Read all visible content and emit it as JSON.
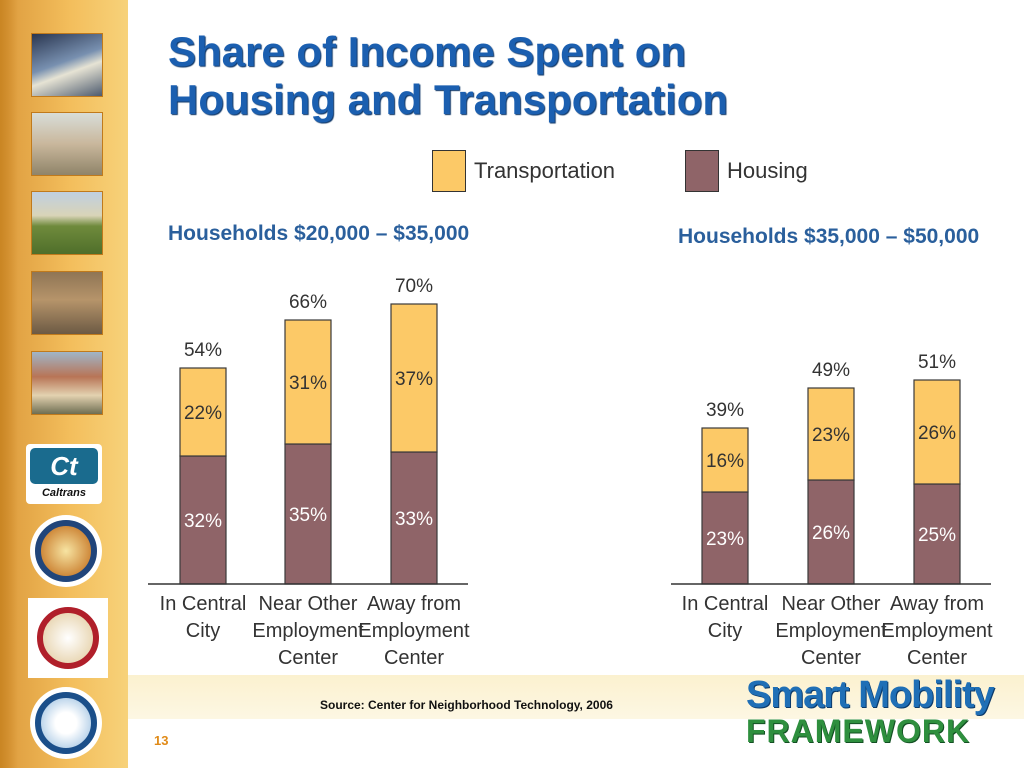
{
  "slide": {
    "title_line1": "Share of Income Spent on",
    "title_line2": "Housing and Transportation",
    "source": "Source: Center for Neighborhood Technology, 2006",
    "page_number": "13",
    "brand_line1": "Smart Mobility",
    "brand_line2": "FRAMEWORK",
    "logo_text": "Caltrans"
  },
  "colors": {
    "transportation": "#fcc967",
    "housing": "#8f6468",
    "title": "#1b5fb0",
    "heading": "#2a5f9c"
  },
  "legend": [
    {
      "label": "Transportation",
      "color": "#fcc967"
    },
    {
      "label": "Housing",
      "color": "#8f6468"
    }
  ],
  "chart_data": [
    {
      "type": "bar",
      "stacked": true,
      "title": "Households $20,000 – $35,000",
      "categories": [
        "In Central City",
        "Near Other Employment Center",
        "Away from Employment Center"
      ],
      "series": [
        {
          "name": "Housing",
          "values": [
            32,
            35,
            33
          ],
          "labels": [
            "32%",
            "35%",
            "33%"
          ]
        },
        {
          "name": "Transportation",
          "values": [
            22,
            31,
            37
          ],
          "labels": [
            "22%",
            "31%",
            "37%"
          ]
        }
      ],
      "totals": [
        "54%",
        "66%",
        "70%"
      ],
      "ylim": [
        0,
        75
      ]
    },
    {
      "type": "bar",
      "stacked": true,
      "title": "Households $35,000 – $50,000",
      "categories": [
        "In Central City",
        "Near Other Employment Center",
        "Away from Employment Center"
      ],
      "series": [
        {
          "name": "Housing",
          "values": [
            23,
            26,
            25
          ],
          "labels": [
            "23%",
            "26%",
            "25%"
          ]
        },
        {
          "name": "Transportation",
          "values": [
            16,
            23,
            26
          ],
          "labels": [
            "16%",
            "23%",
            "26%"
          ]
        }
      ],
      "totals": [
        "39%",
        "49%",
        "51%"
      ],
      "ylim": [
        0,
        75
      ]
    }
  ]
}
